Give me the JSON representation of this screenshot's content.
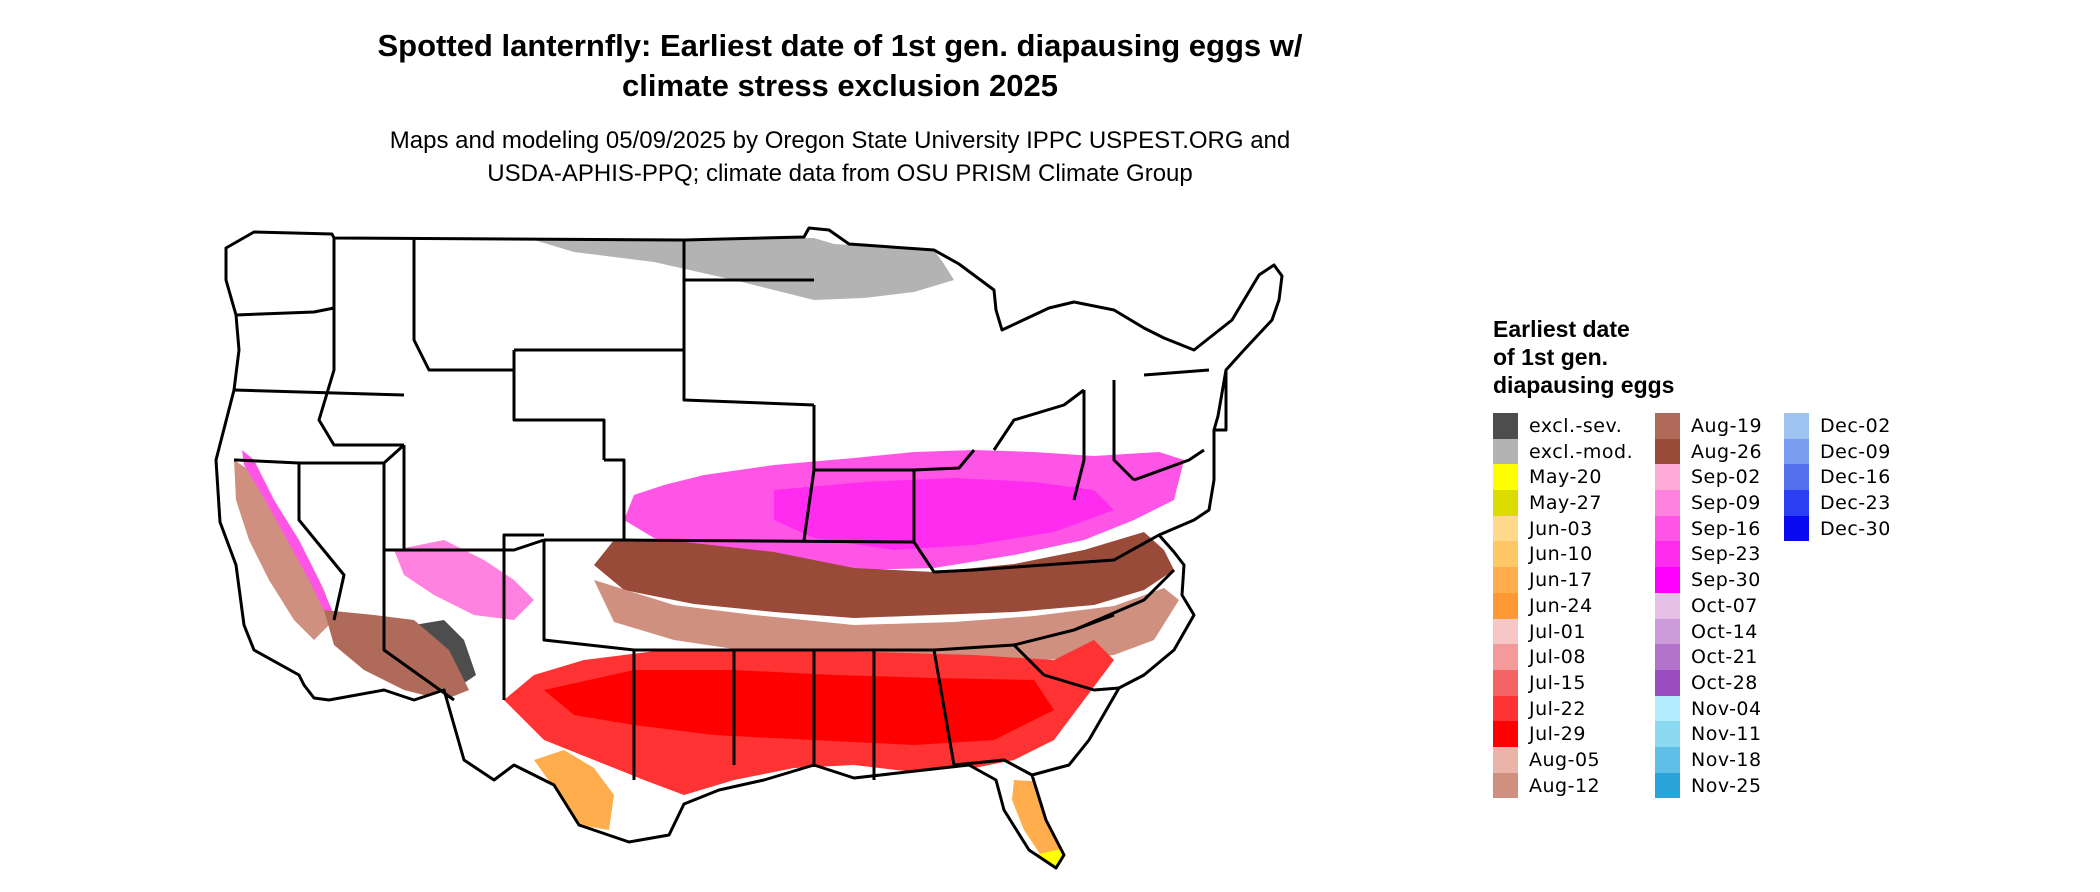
{
  "title_line1": "Spotted lanternfly: Earliest date of 1st gen. diapausing eggs w/",
  "title_line2": "climate stress exclusion 2025",
  "subtitle_line1": "Maps and modeling 05/09/2025 by Oregon State University IPPC USPEST.ORG and",
  "subtitle_line2": "USDA-APHIS-PPQ; climate data from OSU PRISM Climate Group",
  "legend": {
    "title_line1": "Earliest date",
    "title_line2": "of 1st gen.",
    "title_line3": "diapausing eggs",
    "columns": [
      [
        {
          "label": "excl.-sev.",
          "color": "#4d4d4d"
        },
        {
          "label": "excl.-mod.",
          "color": "#b3b3b3"
        },
        {
          "label": "May-20",
          "color": "#ffff00"
        },
        {
          "label": "May-27",
          "color": "#dcdc00"
        },
        {
          "label": "Jun-03",
          "color": "#ffd98a"
        },
        {
          "label": "Jun-10",
          "color": "#ffc766"
        },
        {
          "label": "Jun-17",
          "color": "#ffad4d"
        },
        {
          "label": "Jun-24",
          "color": "#ff9933"
        },
        {
          "label": "Jul-01",
          "color": "#f7c6c6"
        },
        {
          "label": "Jul-08",
          "color": "#f59a9a"
        },
        {
          "label": "Jul-15",
          "color": "#f56464"
        },
        {
          "label": "Jul-22",
          "color": "#ff3333"
        },
        {
          "label": "Jul-29",
          "color": "#ff0000"
        },
        {
          "label": "Aug-05",
          "color": "#e9b5a8"
        },
        {
          "label": "Aug-12",
          "color": "#cf9080"
        }
      ],
      [
        {
          "label": "Aug-19",
          "color": "#b06a5a"
        },
        {
          "label": "Aug-26",
          "color": "#9a4a38"
        },
        {
          "label": "Sep-02",
          "color": "#ffaad7"
        },
        {
          "label": "Sep-09",
          "color": "#ff82e0"
        },
        {
          "label": "Sep-16",
          "color": "#ff55e6"
        },
        {
          "label": "Sep-23",
          "color": "#ff2bee"
        },
        {
          "label": "Sep-30",
          "color": "#ff00ff"
        },
        {
          "label": "Oct-07",
          "color": "#e6bfe6"
        },
        {
          "label": "Oct-14",
          "color": "#cc99d9"
        },
        {
          "label": "Oct-21",
          "color": "#b373cc"
        },
        {
          "label": "Oct-28",
          "color": "#9a4dbf"
        },
        {
          "label": "Nov-04",
          "color": "#b3ecff"
        },
        {
          "label": "Nov-11",
          "color": "#8cd9f2"
        },
        {
          "label": "Nov-18",
          "color": "#5fbfe6"
        },
        {
          "label": "Nov-25",
          "color": "#29a3d9"
        }
      ],
      [
        {
          "label": "Dec-02",
          "color": "#9ec3f0"
        },
        {
          "label": "Dec-09",
          "color": "#7a9cf0"
        },
        {
          "label": "Dec-16",
          "color": "#5470ee"
        },
        {
          "label": "Dec-23",
          "color": "#2b3ff3"
        },
        {
          "label": "Dec-30",
          "color": "#0a0af0"
        }
      ]
    ]
  }
}
